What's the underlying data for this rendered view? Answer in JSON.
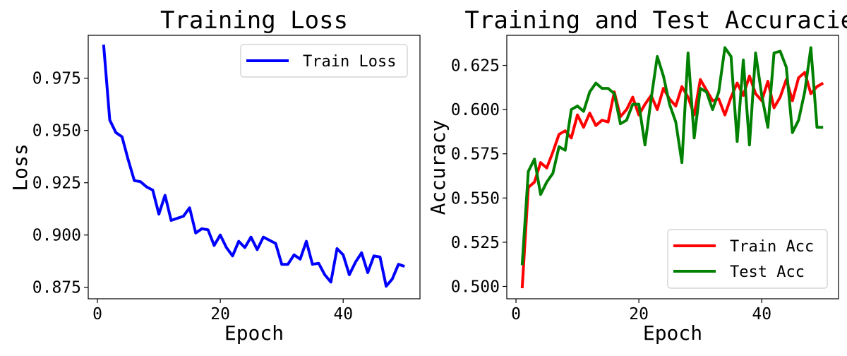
{
  "chart_data": [
    {
      "type": "line",
      "title": "Training Loss",
      "xlabel": "Epoch",
      "ylabel": "Loss",
      "xlim": [
        -1.5,
        52.5
      ],
      "ylim": [
        0.8695,
        0.9955
      ],
      "xticks": [
        "0",
        "20",
        "40"
      ],
      "xtick_values": [
        0,
        20,
        40
      ],
      "yticks": [
        "0.875",
        "0.900",
        "0.925",
        "0.950",
        "0.975"
      ],
      "ytick_values": [
        0.875,
        0.9,
        0.925,
        0.95,
        0.975
      ],
      "legend_position": "top-right",
      "grid": false,
      "series": [
        {
          "name": "Train Loss",
          "color": "#0000ff",
          "x": [
            1,
            2,
            3,
            4,
            5,
            6,
            7,
            8,
            9,
            10,
            11,
            12,
            13,
            14,
            15,
            16,
            17,
            18,
            19,
            20,
            21,
            22,
            23,
            24,
            25,
            26,
            27,
            28,
            29,
            30,
            31,
            32,
            33,
            34,
            35,
            36,
            37,
            38,
            39,
            40,
            41,
            42,
            43,
            44,
            45,
            46,
            47,
            48,
            49,
            50
          ],
          "values": [
            0.991,
            0.955,
            0.949,
            0.947,
            0.936,
            0.926,
            0.9255,
            0.923,
            0.9215,
            0.91,
            0.919,
            0.907,
            0.908,
            0.909,
            0.913,
            0.901,
            0.903,
            0.9025,
            0.895,
            0.9,
            0.894,
            0.89,
            0.897,
            0.894,
            0.899,
            0.893,
            0.899,
            0.8975,
            0.896,
            0.886,
            0.886,
            0.8905,
            0.8885,
            0.897,
            0.886,
            0.8865,
            0.881,
            0.8775,
            0.8935,
            0.8905,
            0.881,
            0.887,
            0.8915,
            0.882,
            0.89,
            0.8895,
            0.8755,
            0.879,
            0.886,
            0.885
          ]
        }
      ]
    },
    {
      "type": "line",
      "title": "Training and Test Accuracies",
      "xlabel": "Epoch",
      "ylabel": "Accuracy",
      "xlim": [
        -1.5,
        52.5
      ],
      "ylim": [
        0.493,
        0.642
      ],
      "xticks": [
        "0",
        "20",
        "40"
      ],
      "xtick_values": [
        0,
        20,
        40
      ],
      "yticks": [
        "0.500",
        "0.525",
        "0.550",
        "0.575",
        "0.600",
        "0.625"
      ],
      "ytick_values": [
        0.5,
        0.525,
        0.55,
        0.575,
        0.6,
        0.625
      ],
      "legend_position": "bottom-right",
      "grid": false,
      "series": [
        {
          "name": "Train Acc",
          "color": "#ff0000",
          "x": [
            1,
            2,
            3,
            4,
            5,
            6,
            7,
            8,
            9,
            10,
            11,
            12,
            13,
            14,
            15,
            16,
            17,
            18,
            19,
            20,
            21,
            22,
            23,
            24,
            25,
            26,
            27,
            28,
            29,
            30,
            31,
            32,
            33,
            34,
            35,
            36,
            37,
            38,
            39,
            40,
            41,
            42,
            43,
            44,
            45,
            46,
            47,
            48,
            49,
            50
          ],
          "values": [
            0.499,
            0.556,
            0.559,
            0.57,
            0.567,
            0.576,
            0.586,
            0.588,
            0.584,
            0.597,
            0.59,
            0.598,
            0.591,
            0.594,
            0.593,
            0.61,
            0.596,
            0.6,
            0.607,
            0.597,
            0.603,
            0.608,
            0.6,
            0.612,
            0.606,
            0.602,
            0.613,
            0.607,
            0.597,
            0.617,
            0.611,
            0.605,
            0.606,
            0.597,
            0.607,
            0.615,
            0.608,
            0.619,
            0.609,
            0.605,
            0.616,
            0.601,
            0.607,
            0.617,
            0.605,
            0.618,
            0.621,
            0.609,
            0.613,
            0.615
          ]
        },
        {
          "name": "Test Acc",
          "color": "#008000",
          "x": [
            1,
            2,
            3,
            4,
            5,
            6,
            7,
            8,
            9,
            10,
            11,
            12,
            13,
            14,
            15,
            16,
            17,
            18,
            19,
            20,
            21,
            22,
            23,
            24,
            25,
            26,
            27,
            28,
            29,
            30,
            31,
            32,
            33,
            34,
            35,
            36,
            37,
            38,
            39,
            40,
            41,
            42,
            43,
            44,
            45,
            46,
            47,
            48,
            49,
            50
          ],
          "values": [
            0.512,
            0.565,
            0.572,
            0.552,
            0.559,
            0.564,
            0.579,
            0.577,
            0.6,
            0.602,
            0.599,
            0.61,
            0.615,
            0.612,
            0.612,
            0.609,
            0.592,
            0.594,
            0.603,
            0.603,
            0.58,
            0.606,
            0.63,
            0.619,
            0.603,
            0.593,
            0.57,
            0.632,
            0.584,
            0.612,
            0.61,
            0.6,
            0.61,
            0.635,
            0.63,
            0.582,
            0.628,
            0.58,
            0.632,
            0.608,
            0.59,
            0.632,
            0.633,
            0.624,
            0.587,
            0.594,
            0.61,
            0.635,
            0.59,
            0.59
          ]
        }
      ]
    }
  ]
}
